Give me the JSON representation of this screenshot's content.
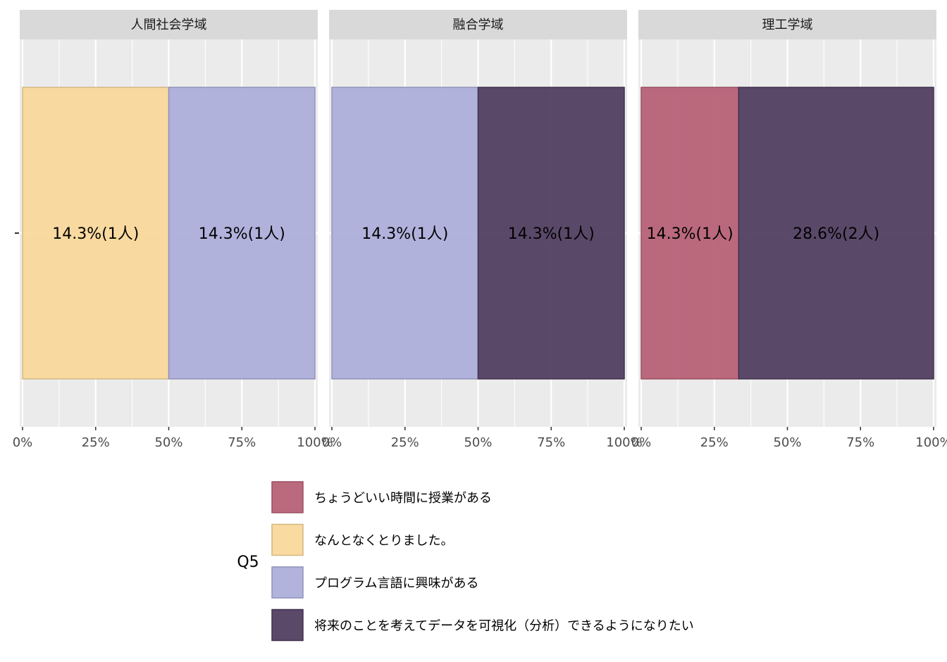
{
  "chart_data": {
    "type": "bar",
    "orientation": "horizontal",
    "stacking": "fill",
    "xlim": [
      0,
      1
    ],
    "x_ticks": [
      "0%",
      "25%",
      "50%",
      "75%",
      "100%"
    ],
    "y_tick_label": "-",
    "panels": [
      {
        "title": "人間社会学域",
        "segments": [
          {
            "category": "なんとなくとりました。",
            "share": 0.5,
            "label": "14.3%(1人)"
          },
          {
            "category": "プログラム言語に興味がある",
            "share": 0.5,
            "label": "14.3%(1人)"
          }
        ]
      },
      {
        "title": "融合学域",
        "segments": [
          {
            "category": "プログラム言語に興味がある",
            "share": 0.5,
            "label": "14.3%(1人)"
          },
          {
            "category": "将来のことを考えてデータを可視化（分析）できるようになりたい",
            "share": 0.5,
            "label": "14.3%(1人)"
          }
        ]
      },
      {
        "title": "理工学域",
        "segments": [
          {
            "category": "ちょうどいい時間に授業がある",
            "share": 0.3333,
            "label": "14.3%(1人)"
          },
          {
            "category": "将来のことを考えてデータを可視化（分析）できるようになりたい",
            "share": 0.6667,
            "label": "28.6%(2人)"
          }
        ]
      }
    ],
    "legend": {
      "title": "Q5",
      "placement": "bottom",
      "items": [
        {
          "label": "ちょうどいい時間に授業がある",
          "color": "#b55d73"
        },
        {
          "label": "なんとなくとりました。",
          "color": "#f8d798"
        },
        {
          "label": "プログラム言語に興味がある",
          "color": "#aaacda"
        },
        {
          "label": "将来のことを考えてデータを可視化（分析）できるようになりたい",
          "color": "#4d3a5d"
        }
      ]
    },
    "grid": true
  }
}
